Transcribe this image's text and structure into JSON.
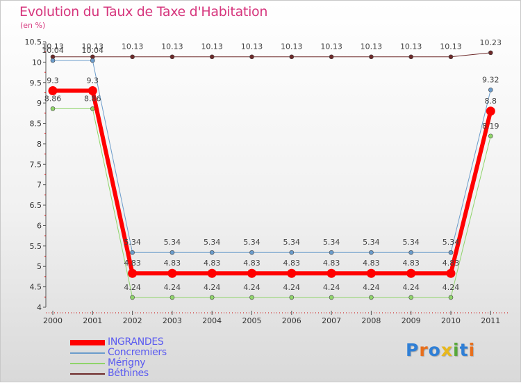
{
  "title": "Evolution du Taux de Taxe d'Habitation",
  "unit_label": "(en %)",
  "logo": {
    "text": "Proxiti",
    "letters": [
      "P",
      "r",
      "o",
      "x",
      "i",
      "t",
      "i"
    ],
    "colors": [
      "#2f7fd6",
      "#e86f1c",
      "#2f7fd6",
      "#e8b81c",
      "#57a83a",
      "#2f7fd6",
      "#e86f1c"
    ]
  },
  "chart_data": {
    "type": "line",
    "title": "Evolution du Taux de Taxe d'Habitation",
    "ylabel": "(en %)",
    "xlabel": "",
    "x": [
      "2000",
      "2001",
      "2002",
      "2003",
      "2004",
      "2005",
      "2006",
      "2007",
      "2008",
      "2009",
      "2010",
      "2011"
    ],
    "ylim": [
      4,
      10.5
    ],
    "yticks": [
      "4",
      "4.5",
      "5",
      "5.5",
      "6",
      "6.5",
      "7",
      "7.5",
      "8",
      "8.5",
      "9",
      "9.5",
      "10",
      "10.5"
    ],
    "legend_position": "bottom-left",
    "series": [
      {
        "name": "Béthines",
        "color": "#6e2a2a",
        "width": 1,
        "values": [
          10.13,
          10.13,
          10.13,
          10.13,
          10.13,
          10.13,
          10.13,
          10.13,
          10.13,
          10.13,
          10.13,
          10.23
        ],
        "labels": [
          "10.13",
          "10.13",
          "10.13",
          "10.13",
          "10.13",
          "10.13",
          "10.13",
          "10.13",
          "10.13",
          "10.13",
          "10.13",
          "10.23"
        ]
      },
      {
        "name": "Concremiers",
        "color": "#6b9ccb",
        "width": 1,
        "values": [
          10.04,
          10.04,
          5.34,
          5.34,
          5.34,
          5.34,
          5.34,
          5.34,
          5.34,
          5.34,
          5.34,
          9.32
        ],
        "labels": [
          "10.04",
          "10.04",
          "5.34",
          "5.34",
          "5.34",
          "5.34",
          "5.34",
          "5.34",
          "5.34",
          "5.34",
          "5.34",
          "9.32"
        ]
      },
      {
        "name": "Mérigny",
        "color": "#8fd46a",
        "width": 1,
        "values": [
          8.86,
          8.86,
          4.24,
          4.24,
          4.24,
          4.24,
          4.24,
          4.24,
          4.24,
          4.24,
          4.24,
          8.19
        ],
        "labels": [
          "8.86",
          "8.86",
          "4.24",
          "4.24",
          "4.24",
          "4.24",
          "4.24",
          "4.24",
          "4.24",
          "4.24",
          "4.24",
          "8.19"
        ]
      },
      {
        "name": "INGRANDES",
        "color": "#ff0000",
        "width": 6,
        "values": [
          9.3,
          9.3,
          4.83,
          4.83,
          4.83,
          4.83,
          4.83,
          4.83,
          4.83,
          4.83,
          4.83,
          8.8
        ],
        "labels": [
          "9.3",
          "9.3",
          "4.83",
          "4.83",
          "4.83",
          "4.83",
          "4.83",
          "4.83",
          "4.83",
          "4.83",
          "4.83",
          "8.8"
        ]
      }
    ],
    "legend": [
      {
        "name": "INGRANDES",
        "color": "#ff0000",
        "text_color": "#5a5af0",
        "thick": true
      },
      {
        "name": "Concremiers",
        "color": "#6b9ccb",
        "text_color": "#5a5af0",
        "thick": false
      },
      {
        "name": "Mérigny",
        "color": "#8fd46a",
        "text_color": "#5a5af0",
        "thick": false
      },
      {
        "name": "Béthines",
        "color": "#6e2a2a",
        "text_color": "#5a5af0",
        "thick": false
      }
    ]
  }
}
